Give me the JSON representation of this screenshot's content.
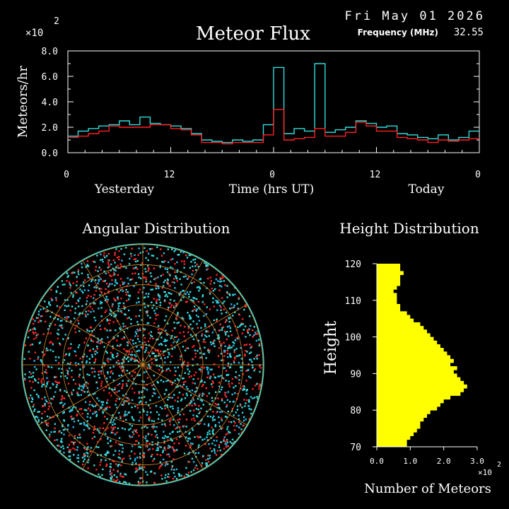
{
  "chart_data": [
    {
      "type": "line",
      "title": "Meteor Flux",
      "date": "Fri May 01 2026",
      "frequency_label": "Frequency (MHz)",
      "frequency_value": "32.55",
      "multiplier": "×10",
      "multiplier_exp": "2",
      "ylabel": "Meteors/hr",
      "xlabel": "Time (hrs UT)",
      "period_labels": [
        "Yesterday",
        "Today"
      ],
      "ylim": [
        0,
        8
      ],
      "yticks": [
        "0.0",
        "2.0",
        "4.0",
        "6.0",
        "8.0"
      ],
      "xtick_labels": [
        "0",
        "12",
        "0",
        "12",
        "0"
      ],
      "xtick_hours": [
        0,
        12,
        24,
        36,
        48
      ],
      "xlim": [
        0,
        48
      ],
      "series": [
        {
          "color": "#33dddd",
          "values": [
            1.3,
            1.7,
            1.9,
            2.1,
            2.2,
            2.5,
            2.2,
            2.8,
            2.3,
            2.2,
            2.1,
            1.9,
            1.5,
            1.0,
            0.9,
            0.8,
            1.0,
            0.9,
            1.0,
            2.2,
            6.7,
            1.5,
            1.9,
            1.7,
            7.0,
            1.6,
            1.8,
            2.0,
            2.5,
            2.3,
            2.0,
            2.1,
            1.5,
            1.4,
            1.2,
            1.1,
            1.4,
            1.0,
            1.2,
            1.7
          ]
        },
        {
          "color": "#ff2020",
          "values": [
            1.2,
            1.3,
            1.5,
            1.7,
            2.1,
            2.0,
            2.0,
            2.0,
            2.2,
            2.2,
            1.9,
            1.8,
            1.4,
            0.8,
            0.8,
            0.7,
            0.8,
            0.8,
            0.8,
            1.4,
            3.4,
            1.0,
            1.1,
            1.2,
            1.9,
            1.3,
            1.3,
            1.6,
            2.4,
            2.1,
            1.7,
            1.7,
            1.2,
            1.1,
            1.0,
            0.8,
            1.0,
            0.9,
            1.0,
            1.1
          ]
        }
      ]
    },
    {
      "type": "scatter",
      "title": "Angular Distribution"
    },
    {
      "type": "bar",
      "orientation": "horizontal",
      "title": "Height Distribution",
      "ylabel": "Height",
      "xlabel": "Number of Meteors",
      "multiplier": "×10",
      "multiplier_exp": "2",
      "xlim": [
        0,
        3
      ],
      "xticks": [
        "0.0",
        "1.0",
        "2.0",
        "3.0"
      ],
      "yticks": [
        "70",
        "80",
        "90",
        "100",
        "110",
        "120"
      ],
      "ylim": [
        70,
        120
      ],
      "bar_color": "#ffff00",
      "heights": [
        70,
        71,
        72,
        73,
        74,
        75,
        76,
        77,
        78,
        79,
        80,
        81,
        82,
        83,
        84,
        85,
        86,
        87,
        88,
        89,
        90,
        91,
        92,
        93,
        94,
        95,
        96,
        97,
        98,
        99,
        100,
        101,
        102,
        103,
        104,
        105,
        106,
        107,
        108,
        109,
        110,
        111,
        112,
        113,
        114,
        115,
        116,
        117,
        118,
        119
      ],
      "values": [
        0.9,
        0.9,
        1.0,
        1.1,
        1.2,
        1.3,
        1.3,
        1.4,
        1.5,
        1.6,
        1.8,
        1.9,
        2.0,
        2.2,
        2.5,
        2.6,
        2.7,
        2.6,
        2.5,
        2.4,
        2.3,
        2.4,
        2.2,
        2.3,
        2.2,
        2.1,
        2.0,
        1.9,
        1.8,
        1.7,
        1.6,
        1.5,
        1.4,
        1.3,
        1.1,
        1.0,
        0.9,
        0.7,
        0.7,
        0.6,
        0.6,
        0.6,
        0.5,
        0.6,
        0.7,
        0.7,
        0.7,
        0.8,
        0.7,
        0.7
      ]
    }
  ]
}
